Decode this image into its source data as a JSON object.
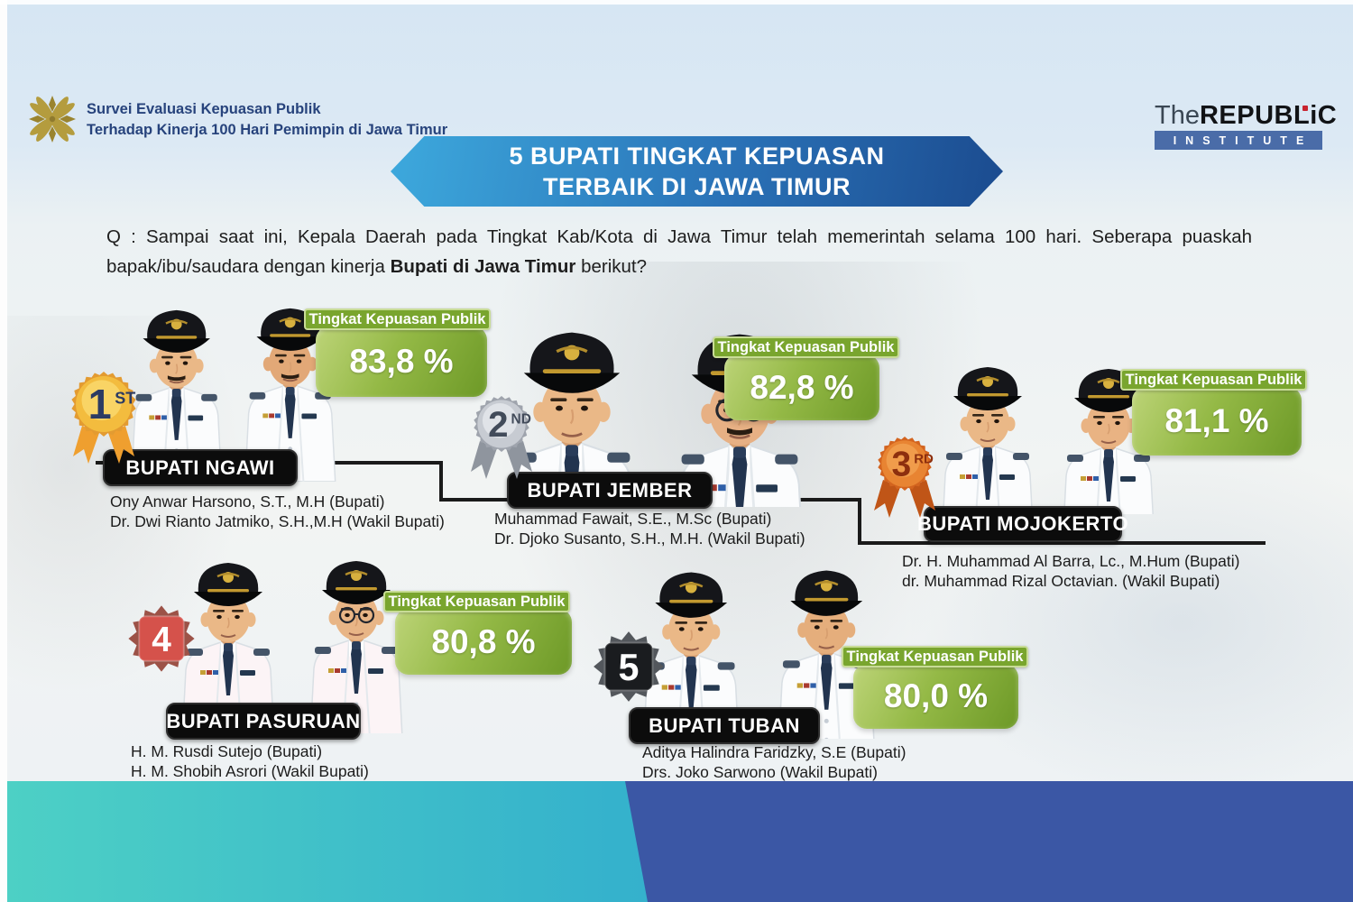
{
  "header": {
    "survey_title_line1": "Survei Evaluasi Kepuasan Publik",
    "survey_title_line2": "Terhadap Kinerja 100 Hari Pemimpin di Jawa Timur",
    "institute_the": "The",
    "institute_main": "REPUBLiC",
    "institute_sub": "INSTITUTE"
  },
  "banner": {
    "line1": "5 BUPATI TINGKAT KEPUASAN",
    "line2": "TERBAIK DI JAWA TIMUR"
  },
  "question": {
    "prefix": "Q : Sampai saat ini, Kepala Daerah pada Tingkat Kab/Kota di Jawa Timur telah memerintah selama 100 hari. Seberapa puaskah bapak/ibu/saudara dengan kinerja ",
    "bold": "Bupati di Jawa Timur",
    "suffix": " berikut?"
  },
  "badge_label": "Tingkat Kepuasan Publik",
  "entries": [
    {
      "rank": "1",
      "rank_suffix": "ST",
      "region": "BUPATI NGAWI",
      "score": "83,8 %",
      "bupati": "Ony Anwar Harsono, S.T., M.H (Bupati)",
      "wakil": "Dr. Dwi Rianto Jatmiko, S.H.,M.H (Wakil Bupati)"
    },
    {
      "rank": "2",
      "rank_suffix": "ND",
      "region": "BUPATI JEMBER",
      "score": "82,8 %",
      "bupati": "Muhammad Fawait, S.E., M.Sc (Bupati)",
      "wakil": "Dr. Djoko Susanto, S.H., M.H. (Wakil Bupati)"
    },
    {
      "rank": "3",
      "rank_suffix": "RD",
      "region": "BUPATI MOJOKERTO",
      "score": "81,1 %",
      "bupati": "Dr. H. Muhammad Al Barra, Lc., M.Hum (Bupati)",
      "wakil": "dr. Muhammad Rizal Octavian. (Wakil Bupati)"
    },
    {
      "rank": "4",
      "rank_suffix": "",
      "region": "BUPATI PASURUAN",
      "score": "80,8 %",
      "bupati": "H. M. Rusdi Sutejo (Bupati)",
      "wakil": "H. M. Shobih Asrori (Wakil Bupati)"
    },
    {
      "rank": "5",
      "rank_suffix": "",
      "region": "BUPATI TUBAN",
      "score": "80,0 %",
      "bupati": "Aditya Halindra Faridzky, S.E (Bupati)",
      "wakil": "Drs. Joko Sarwono (Wakil Bupati)"
    }
  ],
  "colors": {
    "banner_blue_light": "#3da9dd",
    "banner_blue_dark": "#1b4b8f",
    "badge_green": "#79a52e",
    "badge_green_dark": "#6d9927",
    "label_black": "#0c0c0c",
    "band_teal": "#4dd0c5",
    "band_blue": "#3b57a5",
    "header_navy": "#27437c",
    "institute_bar_blue": "#4a6ca8"
  },
  "chart_data": {
    "type": "table",
    "title": "5 BUPATI TINGKAT KEPUASAN TERBAIK DI JAWA TIMUR",
    "value_label": "Tingkat Kepuasan Publik (%)",
    "categories": [
      "Bupati Ngawi",
      "Bupati Jember",
      "Bupati Mojokerto",
      "Bupati Pasuruan",
      "Bupati Tuban"
    ],
    "ranks": [
      1,
      2,
      3,
      4,
      5
    ],
    "values": [
      83.8,
      82.8,
      81.1,
      80.8,
      80.0
    ]
  }
}
